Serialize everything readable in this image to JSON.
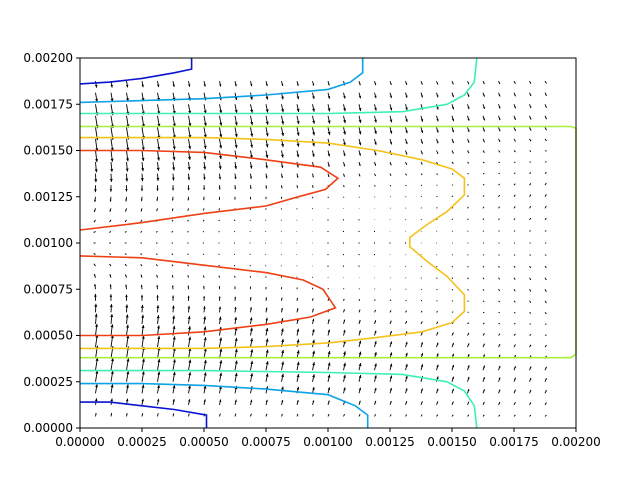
{
  "chart_data": {
    "type": "contour",
    "title": "",
    "xlabel": "",
    "ylabel": "",
    "xlim": [
      0,
      0.002
    ],
    "ylim": [
      0,
      0.002
    ],
    "grid": false,
    "legend": "none",
    "x_ticks": [
      "0.00000",
      "0.00025",
      "0.00050",
      "0.00075",
      "0.00100",
      "0.00125",
      "0.00150",
      "0.00175",
      "0.00200"
    ],
    "y_ticks": [
      "0.00000",
      "0.00025",
      "0.00050",
      "0.00075",
      "0.00100",
      "0.00125",
      "0.00150",
      "0.00175",
      "0.00200"
    ],
    "contours": [
      {
        "color": "#0a14d2",
        "points": [
          [
            0.0,
            0.00186
          ],
          [
            0.00012,
            0.00187
          ],
          [
            0.00025,
            0.00189
          ],
          [
            0.00038,
            0.00192
          ],
          [
            0.00045,
            0.00194
          ],
          [
            0.00045,
            0.002
          ]
        ]
      },
      {
        "color": "#0a14d2",
        "points": [
          [
            0.0,
            0.00014
          ],
          [
            0.00012,
            0.00014
          ],
          [
            0.00025,
            0.00012
          ],
          [
            0.00038,
            0.0001
          ],
          [
            0.00051,
            7e-05
          ],
          [
            0.00051,
            0.0
          ]
        ]
      },
      {
        "color": "#0ea2e6",
        "points": [
          [
            0.0,
            0.00176
          ],
          [
            0.00025,
            0.00177
          ],
          [
            0.0005,
            0.00178
          ],
          [
            0.00075,
            0.0018
          ],
          [
            0.001,
            0.00183
          ],
          [
            0.00109,
            0.00187
          ],
          [
            0.00114,
            0.00192
          ],
          [
            0.00114,
            0.002
          ]
        ]
      },
      {
        "color": "#0ea2e6",
        "points": [
          [
            0.0,
            0.00024
          ],
          [
            0.00025,
            0.00024
          ],
          [
            0.0005,
            0.00023
          ],
          [
            0.00075,
            0.00021
          ],
          [
            0.001,
            0.00018
          ],
          [
            0.00111,
            0.00012
          ],
          [
            0.00116,
            7e-05
          ],
          [
            0.00116,
            0.0
          ]
        ]
      },
      {
        "color": "#3ef0b4",
        "points": [
          [
            0.0,
            0.0017
          ],
          [
            0.0005,
            0.0017
          ],
          [
            0.001,
            0.0017
          ],
          [
            0.0013,
            0.00171
          ],
          [
            0.00148,
            0.00175
          ],
          [
            0.00155,
            0.0018
          ],
          [
            0.00159,
            0.00187
          ],
          [
            0.0016,
            0.002
          ]
        ]
      },
      {
        "color": "#3ef0b4",
        "points": [
          [
            0.0,
            0.00031
          ],
          [
            0.0005,
            0.00031
          ],
          [
            0.001,
            0.0003
          ],
          [
            0.0013,
            0.00029
          ],
          [
            0.00148,
            0.00025
          ],
          [
            0.00155,
            0.0002
          ],
          [
            0.00159,
            0.00012
          ],
          [
            0.0016,
            0.0
          ]
        ]
      },
      {
        "color": "#a8f03c",
        "points": [
          [
            0.0,
            0.00163
          ],
          [
            0.001,
            0.00163
          ],
          [
            0.0019,
            0.00163
          ],
          [
            0.00198,
            0.00163
          ],
          [
            0.002,
            0.00162
          ]
        ]
      },
      {
        "color": "#a8f03c",
        "points": [
          [
            0.0,
            0.00038
          ],
          [
            0.001,
            0.00038
          ],
          [
            0.0019,
            0.00038
          ],
          [
            0.00198,
            0.00038
          ],
          [
            0.002,
            0.0004
          ]
        ]
      },
      {
        "color": "#a8f03c",
        "points": [
          [
            0.002,
            0.00162
          ],
          [
            0.002,
            0.0004
          ]
        ]
      },
      {
        "color": "#f5c21a",
        "points": [
          [
            0.0,
            0.00157
          ],
          [
            0.00025,
            0.00157
          ],
          [
            0.0005,
            0.00157
          ],
          [
            0.00075,
            0.00156
          ],
          [
            0.001,
            0.00154
          ],
          [
            0.0012,
            0.0015
          ],
          [
            0.00138,
            0.00145
          ],
          [
            0.0015,
            0.0014
          ],
          [
            0.00155,
            0.00135
          ],
          [
            0.00155,
            0.00126
          ],
          [
            0.00148,
            0.00117
          ],
          [
            0.0014,
            0.0011
          ],
          [
            0.00133,
            0.00103
          ],
          [
            0.00133,
            0.00098
          ],
          [
            0.0014,
            0.0009
          ],
          [
            0.00148,
            0.00082
          ],
          [
            0.00155,
            0.00072
          ],
          [
            0.00155,
            0.00063
          ],
          [
            0.0015,
            0.00057
          ],
          [
            0.00138,
            0.00052
          ],
          [
            0.0012,
            0.00049
          ],
          [
            0.001,
            0.00046
          ],
          [
            0.00075,
            0.00044
          ],
          [
            0.0005,
            0.00043
          ],
          [
            0.00025,
            0.00043
          ],
          [
            0.0,
            0.00043
          ]
        ]
      },
      {
        "color": "#ee4015",
        "points": [
          [
            0.0,
            0.0015
          ],
          [
            0.00025,
            0.0015
          ],
          [
            0.0005,
            0.00149
          ],
          [
            0.00075,
            0.00145
          ],
          [
            0.00097,
            0.00141
          ],
          [
            0.00104,
            0.00135
          ],
          [
            0.00099,
            0.00129
          ],
          [
            0.00088,
            0.00125
          ],
          [
            0.00075,
            0.0012
          ],
          [
            0.0005,
            0.00116
          ],
          [
            0.00025,
            0.00111
          ],
          [
            0.0,
            0.00107
          ]
        ]
      },
      {
        "color": "#ee4015",
        "points": [
          [
            0.0,
            0.00093
          ],
          [
            0.00025,
            0.00092
          ],
          [
            0.0005,
            0.00088
          ],
          [
            0.00075,
            0.00084
          ],
          [
            0.0009,
            0.0008
          ],
          [
            0.00098,
            0.00075
          ],
          [
            0.00103,
            0.00065
          ],
          [
            0.00093,
            0.0006
          ],
          [
            0.00075,
            0.00056
          ],
          [
            0.0005,
            0.00052
          ],
          [
            0.00025,
            0.0005
          ],
          [
            0.0,
            0.0005
          ]
        ]
      }
    ],
    "vector_field": {
      "x_grid": [
        6.25e-05,
        0.001875,
        30
      ],
      "y_grid": [
        6.25e-05,
        0.001875,
        30
      ],
      "color": "#000000"
    }
  }
}
